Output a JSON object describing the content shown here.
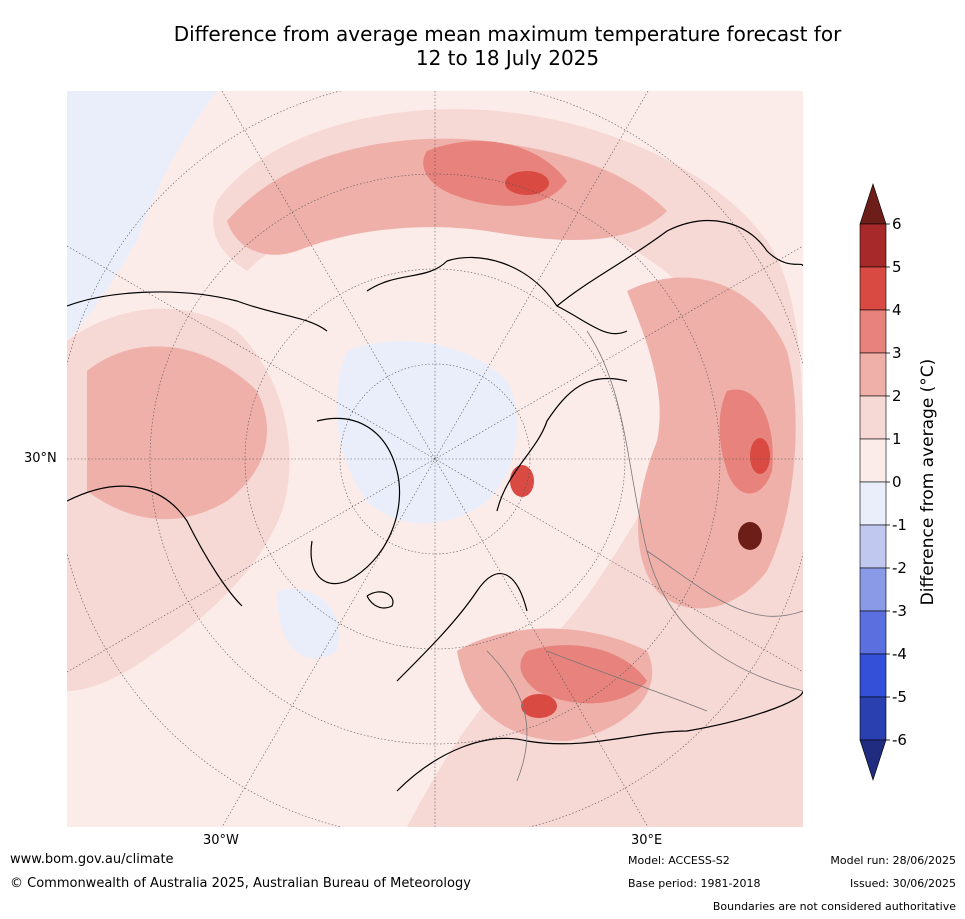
{
  "title_line1": "Difference from average mean maximum temperature forecast for",
  "title_line2": "12 to 18 July 2025",
  "lat_label": "30°N",
  "lon_labels": [
    "30°W",
    "30°E"
  ],
  "colorbar": {
    "title": "Difference from average (°C)",
    "ticks": [
      "6",
      "5",
      "4",
      "3",
      "2",
      "1",
      "0",
      "-1",
      "-2",
      "-3",
      "-4",
      "-5",
      "-6"
    ],
    "colors": [
      "#6e1e18",
      "#a8292a",
      "#d84a42",
      "#e8827c",
      "#efb0aa",
      "#f6d8d4",
      "#fcece9",
      "#e9eefa",
      "#c0c8f0",
      "#8a9ae6",
      "#5b6fdf",
      "#3450d9",
      "#2a40b0",
      "#1f2c80"
    ]
  },
  "footer": {
    "website": "www.bom.gov.au/climate",
    "copyright": "© Commonwealth of Australia 2025, Australian Bureau of Meteorology",
    "model": "Model: ACCESS-S2",
    "base_period": "Base period: 1981-2018",
    "model_run": "Model run: 28/06/2025",
    "issued": "Issued: 30/06/2025",
    "disclaimer": "Boundaries are not considered authoritative"
  }
}
